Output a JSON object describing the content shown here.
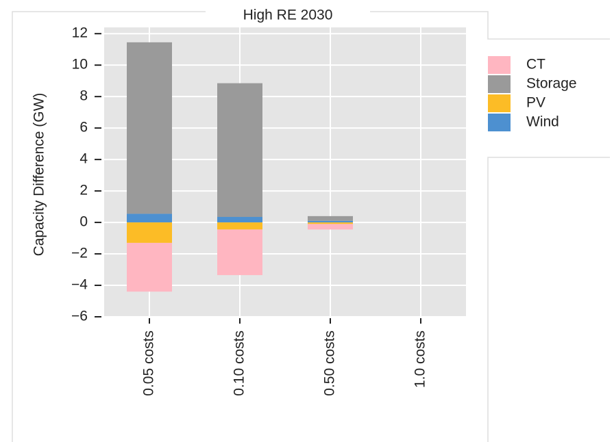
{
  "chart_data": {
    "type": "bar",
    "stacked": true,
    "title": "High RE 2030",
    "y_label": "Capacity Difference (GW)",
    "categories": [
      "0.05 costs",
      "0.10 costs",
      "0.50 costs",
      "1.0 costs"
    ],
    "series": [
      {
        "name": "CT",
        "color": "#ffb6c1",
        "values": [
          -3.1,
          -2.9,
          -0.35,
          0
        ]
      },
      {
        "name": "Storage",
        "color": "#9a9a9a",
        "values": [
          10.9,
          8.5,
          0.3,
          0
        ]
      },
      {
        "name": "PV",
        "color": "#fcbc26",
        "values": [
          -1.3,
          -0.45,
          -0.1,
          0
        ]
      },
      {
        "name": "Wind",
        "color": "#4d90d0",
        "values": [
          0.55,
          0.35,
          0.1,
          0
        ]
      }
    ],
    "ylim": [
      -6,
      12.4
    ],
    "yticks": [
      {
        "value": -6,
        "label": "−6"
      },
      {
        "value": -4,
        "label": "−4"
      },
      {
        "value": -2,
        "label": "−2"
      },
      0,
      2,
      4,
      6,
      8,
      10,
      12
    ],
    "grid": true,
    "legend": "right"
  }
}
